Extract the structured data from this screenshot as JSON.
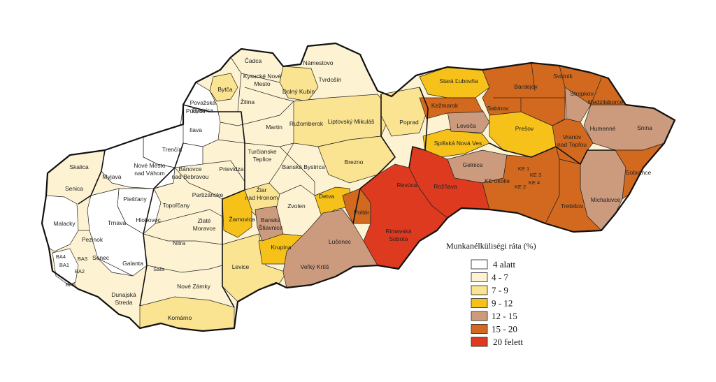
{
  "legend": {
    "title": "Munkanélküliségi ráta (%)",
    "classes": [
      {
        "label": "4 alatt",
        "color": "#ffffff"
      },
      {
        "label": "4 - 7",
        "color": "#fdf3d2"
      },
      {
        "label": "7 - 9",
        "color": "#fbe491"
      },
      {
        "label": "9 - 12",
        "color": "#f6c21a"
      },
      {
        "label": "12 - 15",
        "color": "#cc9a7d"
      },
      {
        "label": "15 - 20",
        "color": "#d2691e"
      },
      {
        "label": "20 felett",
        "color": "#dd3a20"
      }
    ]
  },
  "districts": [
    {
      "name": "Čadca",
      "class": 1
    },
    {
      "name": "Námestovo",
      "class": 1
    },
    {
      "name": "Tvrdošín",
      "class": 1
    },
    {
      "name": "Kysucké Nové Mesto",
      "class": 1
    },
    {
      "name": "Bytča",
      "class": 2
    },
    {
      "name": "Považská Bystrica",
      "class": 1
    },
    {
      "name": "Žilina",
      "class": 1
    },
    {
      "name": "Dolný Kubín",
      "class": 2
    },
    {
      "name": "Púchov",
      "class": 0
    },
    {
      "name": "Ilava",
      "class": 0
    },
    {
      "name": "Martin",
      "class": 1
    },
    {
      "name": "Ružomberok",
      "class": 2
    },
    {
      "name": "Liptovský Mikuláš",
      "class": 2
    },
    {
      "name": "Poprad",
      "class": 2
    },
    {
      "name": "Stará Ľubovňa",
      "class": 3
    },
    {
      "name": "Kežmarok",
      "class": 5
    },
    {
      "name": "Levoča",
      "class": 4
    },
    {
      "name": "Sabinov",
      "class": 5
    },
    {
      "name": "Bardejov",
      "class": 5
    },
    {
      "name": "Svidník",
      "class": 5
    },
    {
      "name": "Stropkov",
      "class": 4
    },
    {
      "name": "Medzilaborce",
      "class": 5
    },
    {
      "name": "Humenné",
      "class": 4
    },
    {
      "name": "Snina",
      "class": 4
    },
    {
      "name": "Prešov",
      "class": 3
    },
    {
      "name": "Vranov nad Topľou",
      "class": 5
    },
    {
      "name": "Spišská Nová Ves",
      "class": 3
    },
    {
      "name": "Gelnica",
      "class": 4
    },
    {
      "name": "Rožňava",
      "class": 6
    },
    {
      "name": "KE okolie",
      "class": 5
    },
    {
      "name": "KE 1",
      "class": 1
    },
    {
      "name": "KE 2",
      "class": 1
    },
    {
      "name": "KE 3",
      "class": 1
    },
    {
      "name": "KE 4",
      "class": 1
    },
    {
      "name": "Sobrance",
      "class": 5
    },
    {
      "name": "Michalovce",
      "class": 4
    },
    {
      "name": "Trebišov",
      "class": 5
    },
    {
      "name": "Trenčín",
      "class": 0
    },
    {
      "name": "Turčianske Teplice",
      "class": 1
    },
    {
      "name": "Banská Bystrica",
      "class": 1
    },
    {
      "name": "Brezno",
      "class": 2
    },
    {
      "name": "Bánovce nad Bebravou",
      "class": 1
    },
    {
      "name": "Prievidza",
      "class": 1
    },
    {
      "name": "Nové Mesto nad Váhom",
      "class": 0
    },
    {
      "name": "Myjava",
      "class": 0
    },
    {
      "name": "Skalica",
      "class": 1
    },
    {
      "name": "Senica",
      "class": 1
    },
    {
      "name": "Partizánske",
      "class": 1
    },
    {
      "name": "Žiar nad Hronom",
      "class": 2
    },
    {
      "name": "Žarnovica",
      "class": 3
    },
    {
      "name": "Banská Štiavnica",
      "class": 4
    },
    {
      "name": "Zvolen",
      "class": 1
    },
    {
      "name": "Detva",
      "class": 3
    },
    {
      "name": "Revúca",
      "class": 6
    },
    {
      "name": "Poltár",
      "class": 5
    },
    {
      "name": "Rimavská Sobota",
      "class": 6
    },
    {
      "name": "Lučenec",
      "class": 4
    },
    {
      "name": "Veľký Krtíš",
      "class": 4
    },
    {
      "name": "Krupina",
      "class": 3
    },
    {
      "name": "Levice",
      "class": 2
    },
    {
      "name": "Piešťany",
      "class": 0
    },
    {
      "name": "Topoľčany",
      "class": 1
    },
    {
      "name": "Hlohovec",
      "class": 0
    },
    {
      "name": "Zlaté Moravce",
      "class": 1
    },
    {
      "name": "Malacky",
      "class": 0
    },
    {
      "name": "Trnava",
      "class": 0
    },
    {
      "name": "Pezinok",
      "class": 1
    },
    {
      "name": "Nitra",
      "class": 1
    },
    {
      "name": "Senec",
      "class": 1
    },
    {
      "name": "Galanta",
      "class": 0
    },
    {
      "name": "Šaľa",
      "class": 1
    },
    {
      "name": "Nové Zámky",
      "class": 1
    },
    {
      "name": "BA1",
      "class": 0
    },
    {
      "name": "BA2",
      "class": 0
    },
    {
      "name": "BA3",
      "class": 0
    },
    {
      "name": "BA4",
      "class": 0
    },
    {
      "name": "BA5",
      "class": 0
    },
    {
      "name": "Dunajská Streda",
      "class": 1
    },
    {
      "name": "Komárno",
      "class": 2
    }
  ]
}
